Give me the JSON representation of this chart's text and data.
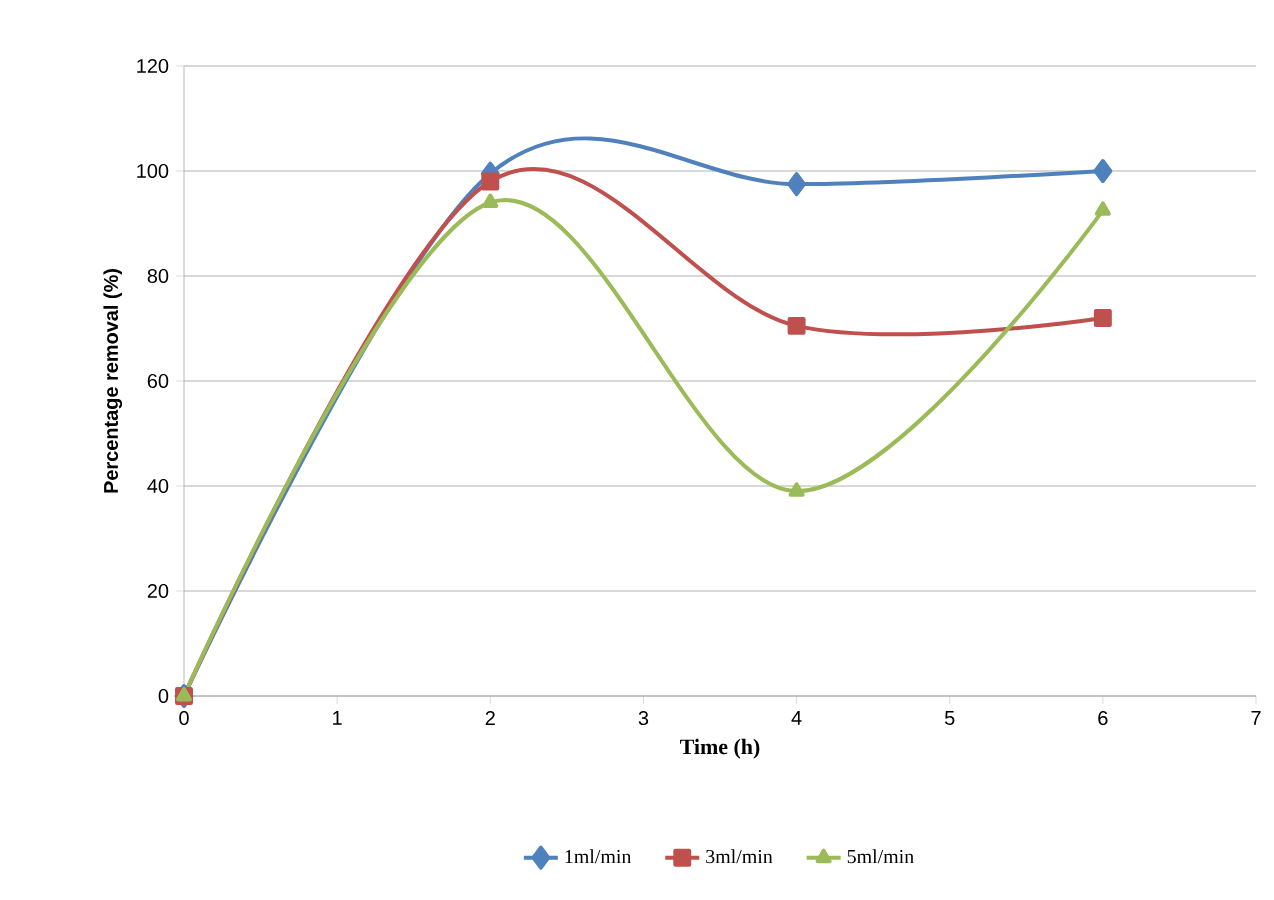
{
  "chart_data": {
    "type": "line",
    "xlabel": "Time (h)",
    "ylabel": "Percentage removal (%)",
    "x": [
      0,
      2,
      4,
      6
    ],
    "series": [
      {
        "name": "1ml/min",
        "color": "#4f81bd",
        "marker": "diamond",
        "values": [
          0,
          99.5,
          97.5,
          100
        ]
      },
      {
        "name": "3ml/min",
        "color": "#c0504d",
        "marker": "square",
        "values": [
          0,
          98,
          70.5,
          72
        ]
      },
      {
        "name": "5ml/min",
        "color": "#9bbb59",
        "marker": "triangle",
        "values": [
          0,
          94,
          39,
          92.5
        ]
      }
    ],
    "xlim": [
      0,
      7
    ],
    "xticks": [
      0,
      1,
      2,
      3,
      4,
      5,
      6,
      7
    ],
    "ylim": [
      0,
      120
    ],
    "yticks": [
      0,
      20,
      40,
      60,
      80,
      100,
      120
    ],
    "grid": "y",
    "legend": "bottom",
    "line_style": "solid"
  }
}
